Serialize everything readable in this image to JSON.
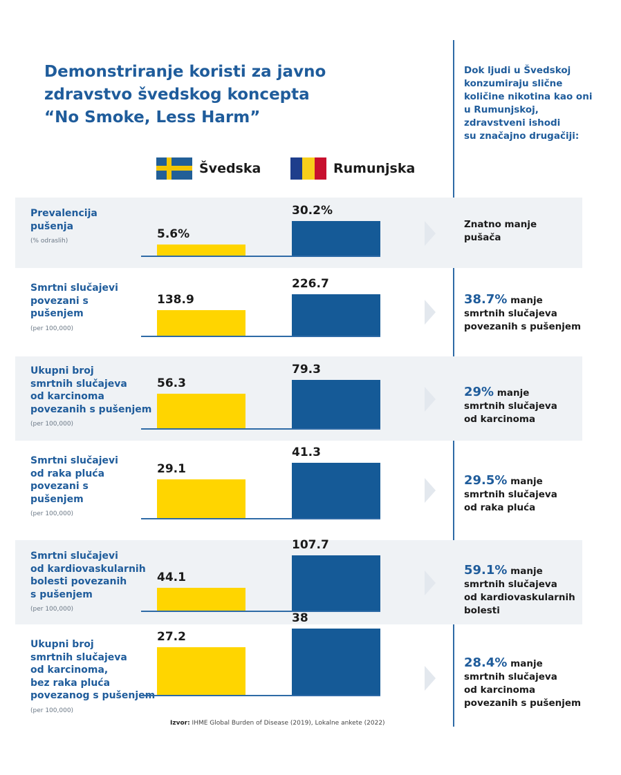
{
  "title": {
    "line1": "Demonstriranje koristi za javno",
    "line2": "zdravstvo švedskog koncepta",
    "line3": "“No Smoke, Less Harm”"
  },
  "side_note": {
    "lines": [
      "Dok ljudi u Švedskoj",
      "konzumiraju slične",
      "količine nikotina kao oni",
      "u Rumunjskoj,",
      "zdravstveni ishodi",
      "su značajno drugačiji:"
    ]
  },
  "colors": {
    "sweden": "#ffd500",
    "romania": "#155a97",
    "heading": "#1f5c9b",
    "flag_ro_blue": "#1e3e8c",
    "flag_ro_yellow": "#f7cf1b",
    "flag_ro_red": "#c8102e"
  },
  "legend": {
    "sweden": "Švedska",
    "romania": "Rumunjska"
  },
  "chart_data": {
    "type": "bar",
    "series": [
      {
        "name": "Švedska",
        "values": [
          5.6,
          138.9,
          56.3,
          29.1,
          44.1,
          27.2
        ]
      },
      {
        "name": "Rumunjska",
        "values": [
          30.2,
          226.7,
          79.3,
          41.3,
          107.7,
          38
        ]
      }
    ],
    "rows": [
      {
        "label_lines": [
          "Prevalencija",
          "pušenja"
        ],
        "unit": "(% odraslih)",
        "se_label": "5.6%",
        "ro_label": "30.2%",
        "se": 5.6,
        "ro": 30.2,
        "pct": "",
        "text_lines": [
          "Znatno manje",
          "pušača"
        ]
      },
      {
        "label_lines": [
          "Smrtni slučajevi",
          "povezani s",
          "pušenjem"
        ],
        "unit": "(per 100,000)",
        "se_label": "138.9",
        "ro_label": "226.7",
        "se": 138.9,
        "ro": 226.7,
        "pct": "38.7%",
        "text_lines": [
          "manje",
          "smrtnih slučajeva",
          "povezanih s pušenjem"
        ]
      },
      {
        "label_lines": [
          "Ukupni broj",
          "smrtnih slučajeva",
          "od karcinoma",
          "povezanih s pušenjem"
        ],
        "unit": "(per 100,000)",
        "se_label": "56.3",
        "ro_label": "79.3",
        "se": 56.3,
        "ro": 79.3,
        "pct": "29%",
        "text_lines": [
          "manje",
          "smrtnih slučajeva",
          "od karcinoma"
        ]
      },
      {
        "label_lines": [
          "Smrtni slučajevi",
          "od raka pluća",
          "povezani s",
          "pušenjem"
        ],
        "unit": "(per 100,000)",
        "se_label": "29.1",
        "ro_label": "41.3",
        "se": 29.1,
        "ro": 41.3,
        "pct": "29.5%",
        "text_lines": [
          "manje",
          "smrtnih slučajeva",
          "od raka pluća"
        ]
      },
      {
        "label_lines": [
          "Smrtni slučajevi",
          "od kardiovaskularnih",
          "bolesti povezanih",
          "s pušenjem"
        ],
        "unit": "(per 100,000)",
        "se_label": "44.1",
        "ro_label": "107.7",
        "se": 44.1,
        "ro": 107.7,
        "pct": "59.1%",
        "text_lines": [
          "manje",
          "smrtnih slučajeva",
          "od kardiovaskularnih",
          "bolesti"
        ]
      },
      {
        "label_lines": [
          "Ukupni broj",
          "smrtnih slučajeva",
          "od karcinoma,",
          "bez raka pluća",
          "povezanog s pušenjem"
        ],
        "unit": "(per 100,000)",
        "se_label": "27.2",
        "ro_label": "38",
        "se": 27.2,
        "ro": 38,
        "pct": "28.4%",
        "text_lines": [
          "manje",
          "smrtnih slučajeva",
          "od karcinoma",
          "povezanih s pušenjem"
        ]
      }
    ]
  },
  "source": {
    "label": "Izvor:",
    "text": " IHME Global Burden of Disease (2019), Lokalne ankete (2022)"
  }
}
